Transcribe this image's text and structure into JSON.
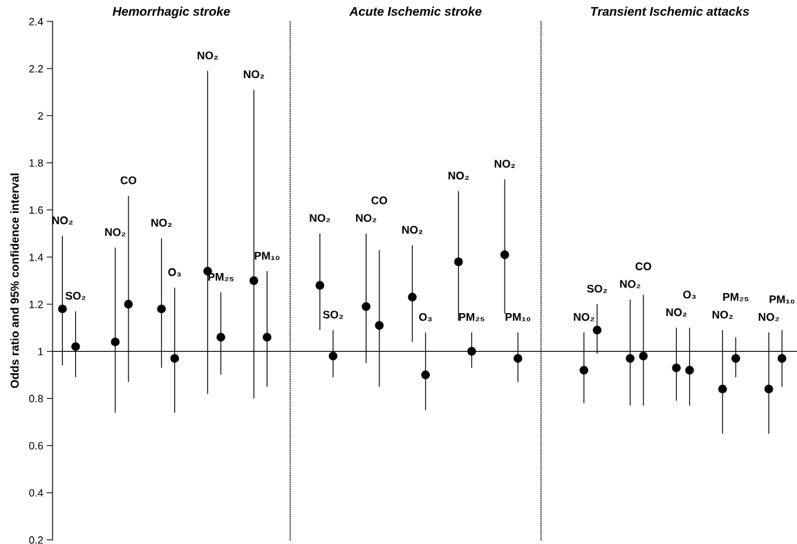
{
  "chart_data": [
    {
      "type": "scatter",
      "title": "Hemorrhagic stroke",
      "ylabel": "Odds ratio and 95% confidence interval",
      "categories": [
        null,
        "NO₂",
        null,
        "SO₂",
        null,
        null,
        null,
        null,
        null,
        "NO₂",
        null,
        "CO",
        null,
        null,
        null,
        null,
        "NO₂",
        null,
        "O₃",
        null,
        null,
        null,
        null,
        "NO₂",
        null,
        "PM₂₅",
        null,
        null,
        null,
        null,
        "NO₂",
        null,
        "PM₁₀",
        null,
        null,
        null
      ],
      "values": [
        null,
        1.18,
        null,
        1.02,
        null,
        null,
        null,
        null,
        null,
        1.04,
        null,
        1.2,
        null,
        null,
        null,
        null,
        1.18,
        null,
        0.97,
        null,
        null,
        null,
        null,
        1.34,
        null,
        1.06,
        null,
        null,
        null,
        null,
        1.3,
        null,
        1.06,
        null,
        null,
        null
      ],
      "errors": [
        null,
        [
          0.94,
          1.49
        ],
        null,
        [
          0.89,
          1.17
        ],
        null,
        null,
        null,
        null,
        null,
        [
          0.74,
          1.44
        ],
        null,
        [
          0.87,
          1.66
        ],
        null,
        null,
        null,
        null,
        [
          0.93,
          1.48
        ],
        null,
        [
          0.74,
          1.27
        ],
        null,
        null,
        null,
        null,
        [
          0.82,
          2.19
        ],
        null,
        [
          0.9,
          1.25
        ],
        null,
        null,
        null,
        null,
        [
          0.8,
          2.11
        ],
        null,
        [
          0.85,
          1.34
        ],
        null,
        null,
        null
      ],
      "color": "#000000",
      "marker": "circle",
      "ylim": [
        0.2,
        2.4
      ],
      "yticks": [
        0.2,
        0.4,
        0.6,
        0.8,
        1,
        1.2,
        1.4,
        1.6,
        1.8,
        2,
        2.2,
        2.4
      ],
      "ref_lines": [
        {
          "axis": "y",
          "value": 1,
          "color": "#000000"
        }
      ],
      "tick_labels": "y",
      "grid": false,
      "legend": false
    },
    {
      "type": "scatter",
      "title": "Acute Ischemic stroke",
      "categories": [
        null,
        null,
        null,
        null,
        "NO₂",
        null,
        "SO₂",
        null,
        null,
        null,
        null,
        "NO₂",
        null,
        "CO",
        null,
        null,
        null,
        null,
        "NO₂",
        null,
        "O₃",
        null,
        null,
        null,
        null,
        "NO₂",
        null,
        "PM₂₅",
        null,
        null,
        null,
        null,
        "NO₂",
        null,
        "PM₁₀",
        null,
        null,
        null
      ],
      "values": [
        null,
        null,
        null,
        null,
        1.28,
        null,
        0.98,
        null,
        null,
        null,
        null,
        1.19,
        null,
        1.11,
        null,
        null,
        null,
        null,
        1.23,
        null,
        0.9,
        null,
        null,
        null,
        null,
        1.38,
        null,
        1.0,
        null,
        null,
        null,
        null,
        1.41,
        null,
        0.97,
        null,
        null,
        null
      ],
      "errors": [
        null,
        null,
        null,
        null,
        [
          1.09,
          1.5
        ],
        null,
        [
          0.89,
          1.09
        ],
        null,
        null,
        null,
        null,
        [
          0.95,
          1.5
        ],
        null,
        [
          0.85,
          1.43
        ],
        null,
        null,
        null,
        null,
        [
          1.04,
          1.45
        ],
        null,
        [
          0.75,
          1.08
        ],
        null,
        null,
        null,
        null,
        [
          1.13,
          1.68
        ],
        null,
        [
          0.93,
          1.08
        ],
        null,
        null,
        null,
        null,
        [
          1.16,
          1.73
        ],
        null,
        [
          0.87,
          1.08
        ],
        null,
        null,
        null
      ],
      "color": "#000000",
      "marker": "circle",
      "ylim": [
        0.2,
        2.4
      ],
      "yticks": [
        0.2,
        0.4,
        0.6,
        0.8,
        1,
        1.2,
        1.4,
        1.6,
        1.8,
        2,
        2.2,
        2.4
      ],
      "ref_lines": [
        {
          "axis": "y",
          "value": 1,
          "color": "#000000"
        }
      ],
      "tick_labels": false,
      "grid": false,
      "legend": false
    },
    {
      "type": "scatter",
      "title": "Transient Ischemic attacks",
      "categories": [
        null,
        null,
        null,
        null,
        null,
        null,
        "NO₂",
        null,
        "SO₂",
        null,
        null,
        null,
        null,
        "NO₂",
        null,
        "CO",
        null,
        null,
        null,
        null,
        "NO₂",
        null,
        "O₃",
        null,
        null,
        null,
        null,
        "NO₂",
        null,
        "PM₂₅",
        null,
        null,
        null,
        null,
        "NO₂",
        null,
        "PM₁₀",
        null,
        null
      ],
      "values": [
        null,
        null,
        null,
        null,
        null,
        null,
        0.92,
        null,
        1.09,
        null,
        null,
        null,
        null,
        0.97,
        null,
        0.98,
        null,
        null,
        null,
        null,
        0.93,
        null,
        0.92,
        null,
        null,
        null,
        null,
        0.84,
        null,
        0.97,
        null,
        null,
        null,
        null,
        0.84,
        null,
        0.97,
        null,
        null
      ],
      "errors": [
        null,
        null,
        null,
        null,
        null,
        null,
        [
          0.78,
          1.08
        ],
        null,
        [
          0.99,
          1.2
        ],
        null,
        null,
        null,
        null,
        [
          0.77,
          1.22
        ],
        null,
        [
          0.77,
          1.24
        ],
        null,
        null,
        null,
        null,
        [
          0.79,
          1.1
        ],
        null,
        [
          0.77,
          1.1
        ],
        null,
        null,
        null,
        null,
        [
          0.65,
          1.09
        ],
        null,
        [
          0.89,
          1.06
        ],
        null,
        null,
        null,
        null,
        [
          0.65,
          1.08
        ],
        null,
        [
          0.85,
          1.09
        ],
        null,
        null
      ],
      "color": "#000000",
      "marker": "circle",
      "ylim": [
        0.2,
        2.4
      ],
      "yticks": [
        0.2,
        0.4,
        0.6,
        0.8,
        1,
        1.2,
        1.4,
        1.6,
        1.8,
        2,
        2.2,
        2.4
      ],
      "ref_lines": [
        {
          "axis": "y",
          "value": 1,
          "color": "#000000"
        }
      ],
      "tick_labels": false,
      "grid": false,
      "legend": false
    }
  ]
}
